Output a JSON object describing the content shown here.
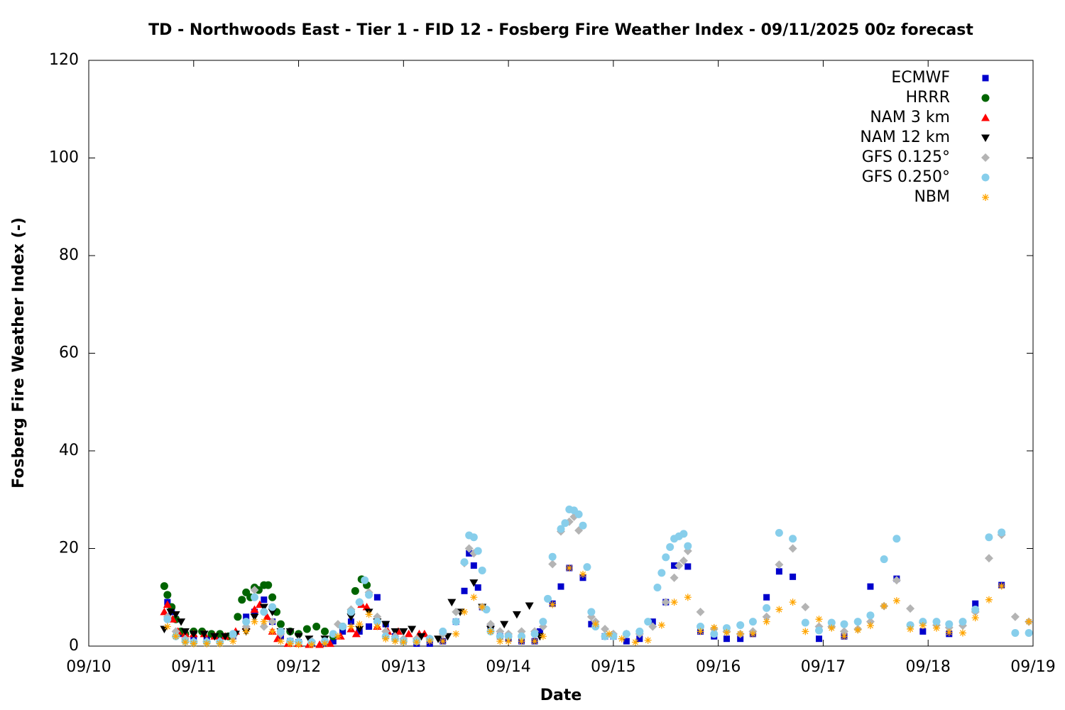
{
  "chart_data": {
    "type": "scatter",
    "title": "TD - Northwoods East - Tier 1 - FID 12 - Fosberg Fire Weather Index - 09/11/2025 00z forecast",
    "x_label": "Date",
    "y_label": "Fosberg Fire Weather Index (-)",
    "xlim": [
      0,
      9
    ],
    "ylim": [
      0,
      120
    ],
    "xticks": [
      {
        "value": 0,
        "label": "09/10"
      },
      {
        "value": 1,
        "label": "09/11"
      },
      {
        "value": 2,
        "label": "09/12"
      },
      {
        "value": 3,
        "label": "09/13"
      },
      {
        "value": 4,
        "label": "09/14"
      },
      {
        "value": 5,
        "label": "09/15"
      },
      {
        "value": 6,
        "label": "09/16"
      },
      {
        "value": 7,
        "label": "09/17"
      },
      {
        "value": 8,
        "label": "09/18"
      },
      {
        "value": 9,
        "label": "09/19"
      }
    ],
    "yticks": [
      0,
      20,
      40,
      60,
      80,
      100,
      120
    ],
    "legend": "upper right",
    "grid": false,
    "series": [
      {
        "name": "ECMWF",
        "color": "#0000cc",
        "marker": "square",
        "x": [
          0.75,
          0.79,
          0.83,
          0.9,
          1.0,
          1.125,
          1.25,
          1.375,
          1.5,
          1.58,
          1.67,
          1.75,
          1.83,
          1.92,
          2.0,
          2.125,
          2.25,
          2.33,
          2.42,
          2.5,
          2.58,
          2.67,
          2.75,
          2.83,
          2.92,
          3.0,
          3.125,
          3.25,
          3.375,
          3.5,
          3.58,
          3.625,
          3.67,
          3.71,
          3.75,
          3.83,
          3.92,
          4.0,
          4.125,
          4.25,
          4.3,
          4.42,
          4.5,
          4.58,
          4.71,
          4.79,
          4.92,
          5.0,
          5.125,
          5.25,
          5.375,
          5.5,
          5.58,
          5.71,
          5.83,
          5.96,
          6.08,
          6.21,
          6.33,
          6.46,
          6.58,
          6.71,
          6.96,
          7.2,
          7.45,
          7.7,
          7.95,
          8.2,
          8.45,
          8.7
        ],
        "values": [
          9,
          7,
          5.5,
          2.5,
          1.5,
          1.5,
          1.5,
          2,
          6,
          7,
          9.5,
          5,
          2,
          1,
          0.8,
          0.5,
          0.5,
          1,
          3,
          5,
          3,
          4,
          10,
          4.5,
          2,
          1,
          0.5,
          0.5,
          1,
          5,
          11.3,
          19,
          16.5,
          12,
          8,
          4,
          2,
          1.5,
          1,
          1,
          3,
          8.7,
          12.2,
          16,
          14,
          4.5,
          2,
          2,
          1,
          1.5,
          5,
          9,
          16.5,
          16.3,
          3,
          2,
          1.5,
          1.5,
          2.5,
          10,
          15.3,
          14.2,
          1.5,
          2,
          12.2,
          13.8,
          3,
          2.5,
          8.7,
          12.5
        ]
      },
      {
        "name": "HRRR",
        "color": "#006400",
        "marker": "circle",
        "x": [
          0.72,
          0.75,
          0.79,
          0.83,
          0.88,
          0.92,
          1.0,
          1.08,
          1.17,
          1.25,
          1.33,
          1.42,
          1.46,
          1.5,
          1.54,
          1.58,
          1.62,
          1.67,
          1.71,
          1.75,
          1.79,
          1.83,
          1.92,
          2.0,
          2.08,
          2.17,
          2.25,
          2.33,
          2.42,
          2.5,
          2.54,
          2.6,
          2.65
        ],
        "values": [
          12.3,
          10.5,
          8,
          5.5,
          3,
          2.5,
          3,
          3,
          2.5,
          2.5,
          2,
          6,
          9.5,
          11,
          10,
          12,
          11.5,
          12.5,
          12.5,
          10,
          7,
          4.5,
          3,
          2.5,
          3.5,
          4,
          3,
          2,
          4,
          7,
          11.3,
          13.7,
          12.5
        ]
      },
      {
        "name": "NAM 3 km",
        "color": "#ff0000",
        "marker": "triangle-up",
        "x": [
          0.72,
          0.75,
          0.8,
          0.85,
          0.92,
          1.0,
          1.1,
          1.2,
          1.3,
          1.4,
          1.5,
          1.58,
          1.63,
          1.7,
          1.75,
          1.8,
          1.9,
          2.0,
          2.1,
          2.2,
          2.3,
          2.4,
          2.5,
          2.55,
          2.6,
          2.65,
          2.75,
          2.85,
          2.95,
          3.05,
          3.15,
          3.2
        ],
        "values": [
          7,
          8.5,
          5.5,
          3,
          2.5,
          2.5,
          2.5,
          2,
          2,
          3,
          4,
          7.5,
          8.5,
          6,
          3,
          1.5,
          0.5,
          0.5,
          0.3,
          0.3,
          0.5,
          2,
          3.5,
          2.5,
          8.5,
          8,
          4,
          3,
          3,
          2.5,
          2.5,
          2.5
        ]
      },
      {
        "name": "NAM 12 km",
        "color": "#000000",
        "marker": "triangle-down",
        "x": [
          0.72,
          0.78,
          0.83,
          0.88,
          0.92,
          1.0,
          1.1,
          1.2,
          1.3,
          1.4,
          1.5,
          1.58,
          1.67,
          1.75,
          1.83,
          1.92,
          2.0,
          2.1,
          2.25,
          2.4,
          2.5,
          2.58,
          2.67,
          2.75,
          2.83,
          2.92,
          3.0,
          3.08,
          3.17,
          3.33,
          3.42,
          3.46,
          3.54,
          3.67,
          3.75,
          3.83,
          3.96,
          4.08,
          4.2,
          4.3
        ],
        "values": [
          3.5,
          7,
          6.5,
          5,
          3,
          2.5,
          2.5,
          2,
          2,
          2.5,
          3,
          6,
          8,
          7,
          3,
          3,
          2,
          1.5,
          1.5,
          4,
          6,
          3.5,
          7,
          5,
          4.5,
          3,
          3,
          3.5,
          2,
          1.5,
          2,
          9,
          7,
          13,
          8,
          3.5,
          4.5,
          6.5,
          8.3,
          2
        ]
      },
      {
        "name": "GFS 0.125°",
        "color": "#b4b4b4",
        "marker": "diamond",
        "x": [
          0.75,
          0.83,
          0.92,
          1.0,
          1.125,
          1.25,
          1.375,
          1.5,
          1.58,
          1.67,
          1.75,
          1.83,
          1.92,
          2.0,
          2.125,
          2.25,
          2.375,
          2.5,
          2.58,
          2.67,
          2.75,
          2.83,
          2.92,
          3.0,
          3.125,
          3.25,
          3.375,
          3.5,
          3.58,
          3.625,
          3.67,
          3.75,
          3.83,
          3.92,
          4.0,
          4.125,
          4.25,
          4.33,
          4.42,
          4.5,
          4.58,
          4.625,
          4.67,
          4.79,
          4.83,
          4.92,
          5.0,
          5.125,
          5.25,
          5.375,
          5.5,
          5.58,
          5.625,
          5.67,
          5.71,
          5.83,
          5.96,
          6.08,
          6.21,
          6.33,
          6.46,
          6.58,
          6.71,
          6.83,
          6.96,
          7.08,
          7.2,
          7.33,
          7.45,
          7.58,
          7.7,
          7.83,
          7.95,
          8.08,
          8.2,
          8.33,
          8.45,
          8.58,
          8.7,
          8.83,
          8.96
        ],
        "values": [
          6,
          3,
          1.5,
          1,
          1,
          1,
          2,
          4,
          11.5,
          4,
          5,
          2.5,
          1,
          1,
          1,
          1,
          4.5,
          7.5,
          9,
          11,
          6,
          3,
          2,
          1.5,
          1.5,
          1.5,
          2.5,
          7,
          17,
          20,
          19,
          8,
          4.5,
          3,
          2.5,
          3,
          3,
          4,
          16.8,
          23.5,
          25.5,
          26.5,
          23.7,
          6,
          5,
          3.5,
          2.5,
          2.5,
          2.5,
          4,
          9,
          14,
          16.5,
          17.5,
          19.5,
          7,
          3.5,
          3,
          2.5,
          3,
          6,
          16.7,
          20,
          8,
          4,
          4,
          3,
          3.5,
          5,
          8.2,
          13.5,
          7.7,
          4.8,
          4.3,
          3.8,
          4.2,
          7,
          18,
          22.8,
          6,
          5
        ]
      },
      {
        "name": "GFS 0.250°",
        "color": "#87ceeb",
        "marker": "circle",
        "x": [
          0.75,
          0.83,
          0.92,
          1.0,
          1.125,
          1.25,
          1.375,
          1.5,
          1.58,
          1.67,
          1.75,
          1.83,
          1.92,
          2.0,
          2.125,
          2.25,
          2.33,
          2.42,
          2.5,
          2.58,
          2.63,
          2.67,
          2.75,
          2.83,
          2.92,
          3.0,
          3.125,
          3.25,
          3.375,
          3.5,
          3.58,
          3.625,
          3.67,
          3.71,
          3.75,
          3.79,
          3.83,
          3.92,
          4.0,
          4.125,
          4.25,
          4.33,
          4.375,
          4.42,
          4.5,
          4.54,
          4.58,
          4.625,
          4.67,
          4.71,
          4.75,
          4.79,
          4.83,
          4.92,
          5.0,
          5.125,
          5.25,
          5.33,
          5.42,
          5.46,
          5.5,
          5.54,
          5.58,
          5.625,
          5.67,
          5.71,
          5.83,
          5.96,
          6.08,
          6.21,
          6.33,
          6.46,
          6.58,
          6.71,
          6.83,
          6.96,
          7.08,
          7.2,
          7.33,
          7.45,
          7.58,
          7.7,
          7.83,
          7.95,
          8.08,
          8.2,
          8.33,
          8.45,
          8.58,
          8.7,
          8.83,
          8.96
        ],
        "values": [
          5.5,
          2,
          1,
          0.8,
          0.8,
          0.8,
          2.5,
          5,
          10,
          7,
          8,
          3,
          1,
          0.8,
          0.8,
          1,
          2.5,
          4,
          7,
          9,
          13.5,
          10.5,
          5,
          2,
          1.5,
          1,
          1,
          1.5,
          3,
          5,
          17.2,
          22.7,
          22.3,
          19.5,
          15.5,
          7.5,
          3,
          2,
          2,
          2,
          2.5,
          5,
          9.7,
          18.3,
          24,
          25.2,
          28,
          27.8,
          27,
          24.7,
          16.2,
          7,
          4,
          2,
          2,
          2.5,
          3,
          5,
          12,
          15,
          18.2,
          20.3,
          22,
          22.5,
          23,
          20.5,
          4,
          2.5,
          3.7,
          4.3,
          5,
          7.8,
          23.2,
          22,
          4.8,
          3.2,
          4.8,
          4.5,
          5,
          6.3,
          17.8,
          22,
          4.3,
          5,
          5,
          4.5,
          5,
          7.5,
          22.3,
          23.3,
          2.7,
          2.7
        ]
      },
      {
        "name": "NBM",
        "color": "#ffa500",
        "marker": "asterisk",
        "x": [
          0.75,
          0.83,
          0.92,
          1.0,
          1.125,
          1.25,
          1.375,
          1.5,
          1.58,
          1.67,
          1.75,
          1.83,
          1.92,
          2.0,
          2.125,
          2.25,
          2.375,
          2.5,
          2.58,
          2.67,
          2.75,
          2.83,
          2.92,
          3.0,
          3.125,
          3.25,
          3.375,
          3.5,
          3.58,
          3.67,
          3.75,
          3.83,
          3.92,
          4.0,
          4.125,
          4.25,
          4.33,
          4.42,
          4.58,
          4.71,
          4.83,
          4.96,
          5.08,
          5.21,
          5.33,
          5.46,
          5.58,
          5.71,
          5.83,
          5.96,
          6.08,
          6.21,
          6.33,
          6.46,
          6.58,
          6.71,
          6.83,
          6.96,
          7.08,
          7.2,
          7.33,
          7.45,
          7.58,
          7.7,
          7.83,
          7.95,
          8.08,
          8.2,
          8.33,
          8.45,
          8.58,
          8.7,
          8.96
        ],
        "values": [
          4,
          2,
          0.8,
          0.5,
          0.5,
          0.5,
          1,
          3,
          5,
          5,
          3,
          1,
          0.5,
          0.3,
          0.3,
          0.5,
          2,
          4,
          4.5,
          6.5,
          4,
          1.5,
          1,
          0.8,
          0.8,
          1,
          1,
          2.5,
          7,
          10,
          8,
          3,
          1,
          1,
          1,
          1,
          2,
          8.5,
          16,
          14.7,
          4.5,
          2.5,
          1.5,
          0.8,
          1.2,
          4.3,
          9,
          10,
          3,
          3.8,
          2.8,
          2.5,
          2.5,
          5,
          7.5,
          9,
          3,
          5.5,
          3.7,
          2,
          3.3,
          4.2,
          8.2,
          9.3,
          3.5,
          4.2,
          3.7,
          2.8,
          2.7,
          5.8,
          9.5,
          12.3,
          5
        ]
      }
    ]
  }
}
